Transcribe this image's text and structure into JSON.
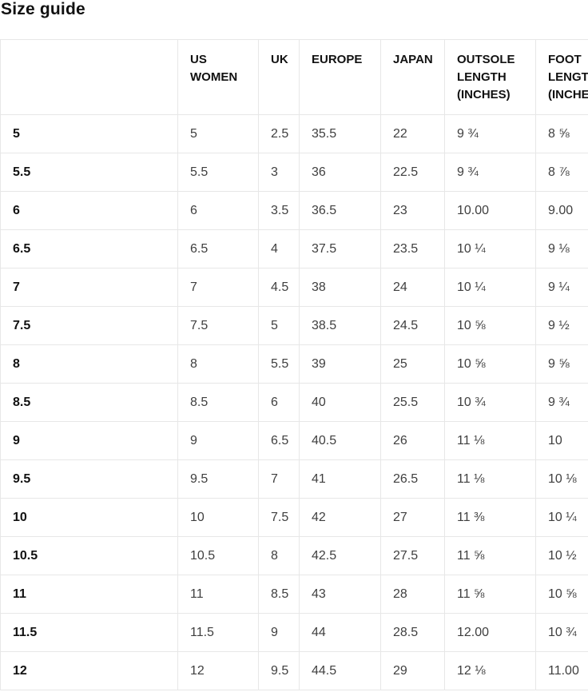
{
  "page": {
    "title": "Size guide"
  },
  "colors": {
    "background": "#ffffff",
    "border": "#e7e7e7",
    "heading_text": "#111111",
    "data_text": "#3f3f3f"
  },
  "table": {
    "columns": [
      {
        "key": "size",
        "label": ""
      },
      {
        "key": "us-women",
        "label": "US WOMEN"
      },
      {
        "key": "uk",
        "label": "UK"
      },
      {
        "key": "europe",
        "label": "EUROPE"
      },
      {
        "key": "japan",
        "label": "JAPAN"
      },
      {
        "key": "outsole",
        "label": "OUTSOLE LENGTH (inches)"
      },
      {
        "key": "foot",
        "label": "FOOT LENGTH (inches)"
      }
    ],
    "rows": [
      [
        "5",
        "5",
        "2.5",
        "35.5",
        "22",
        "9 ¾",
        "8 ⅝"
      ],
      [
        "5.5",
        "5.5",
        "3",
        "36",
        "22.5",
        "9 ¾",
        "8 ⅞"
      ],
      [
        "6",
        "6",
        "3.5",
        "36.5",
        "23",
        "10.00",
        "9.00"
      ],
      [
        "6.5",
        "6.5",
        "4",
        "37.5",
        "23.5",
        "10 ¼",
        "9 ⅛"
      ],
      [
        "7",
        "7",
        "4.5",
        "38",
        "24",
        "10 ¼",
        "9 ¼"
      ],
      [
        "7.5",
        "7.5",
        "5",
        "38.5",
        "24.5",
        "10 ⅝",
        "9 ½"
      ],
      [
        "8",
        "8",
        "5.5",
        "39",
        "25",
        "10 ⅝",
        "9 ⅝"
      ],
      [
        "8.5",
        "8.5",
        "6",
        "40",
        "25.5",
        "10 ¾",
        "9 ¾"
      ],
      [
        "9",
        "9",
        "6.5",
        "40.5",
        "26",
        "11 ⅛",
        "10"
      ],
      [
        "9.5",
        "9.5",
        "7",
        "41",
        "26.5",
        "11 ⅛",
        "10 ⅛"
      ],
      [
        "10",
        "10",
        "7.5",
        "42",
        "27",
        "11 ⅜",
        "10 ¼"
      ],
      [
        "10.5",
        "10.5",
        "8",
        "42.5",
        "27.5",
        "11 ⅝",
        "10 ½"
      ],
      [
        "11",
        "11",
        "8.5",
        "43",
        "28",
        "11 ⅝",
        "10 ⅝"
      ],
      [
        "11.5",
        "11.5",
        "9",
        "44",
        "28.5",
        "12.00",
        "10 ¾"
      ],
      [
        "12",
        "12",
        "9.5",
        "44.5",
        "29",
        "12 ⅛",
        "11.00"
      ]
    ]
  }
}
